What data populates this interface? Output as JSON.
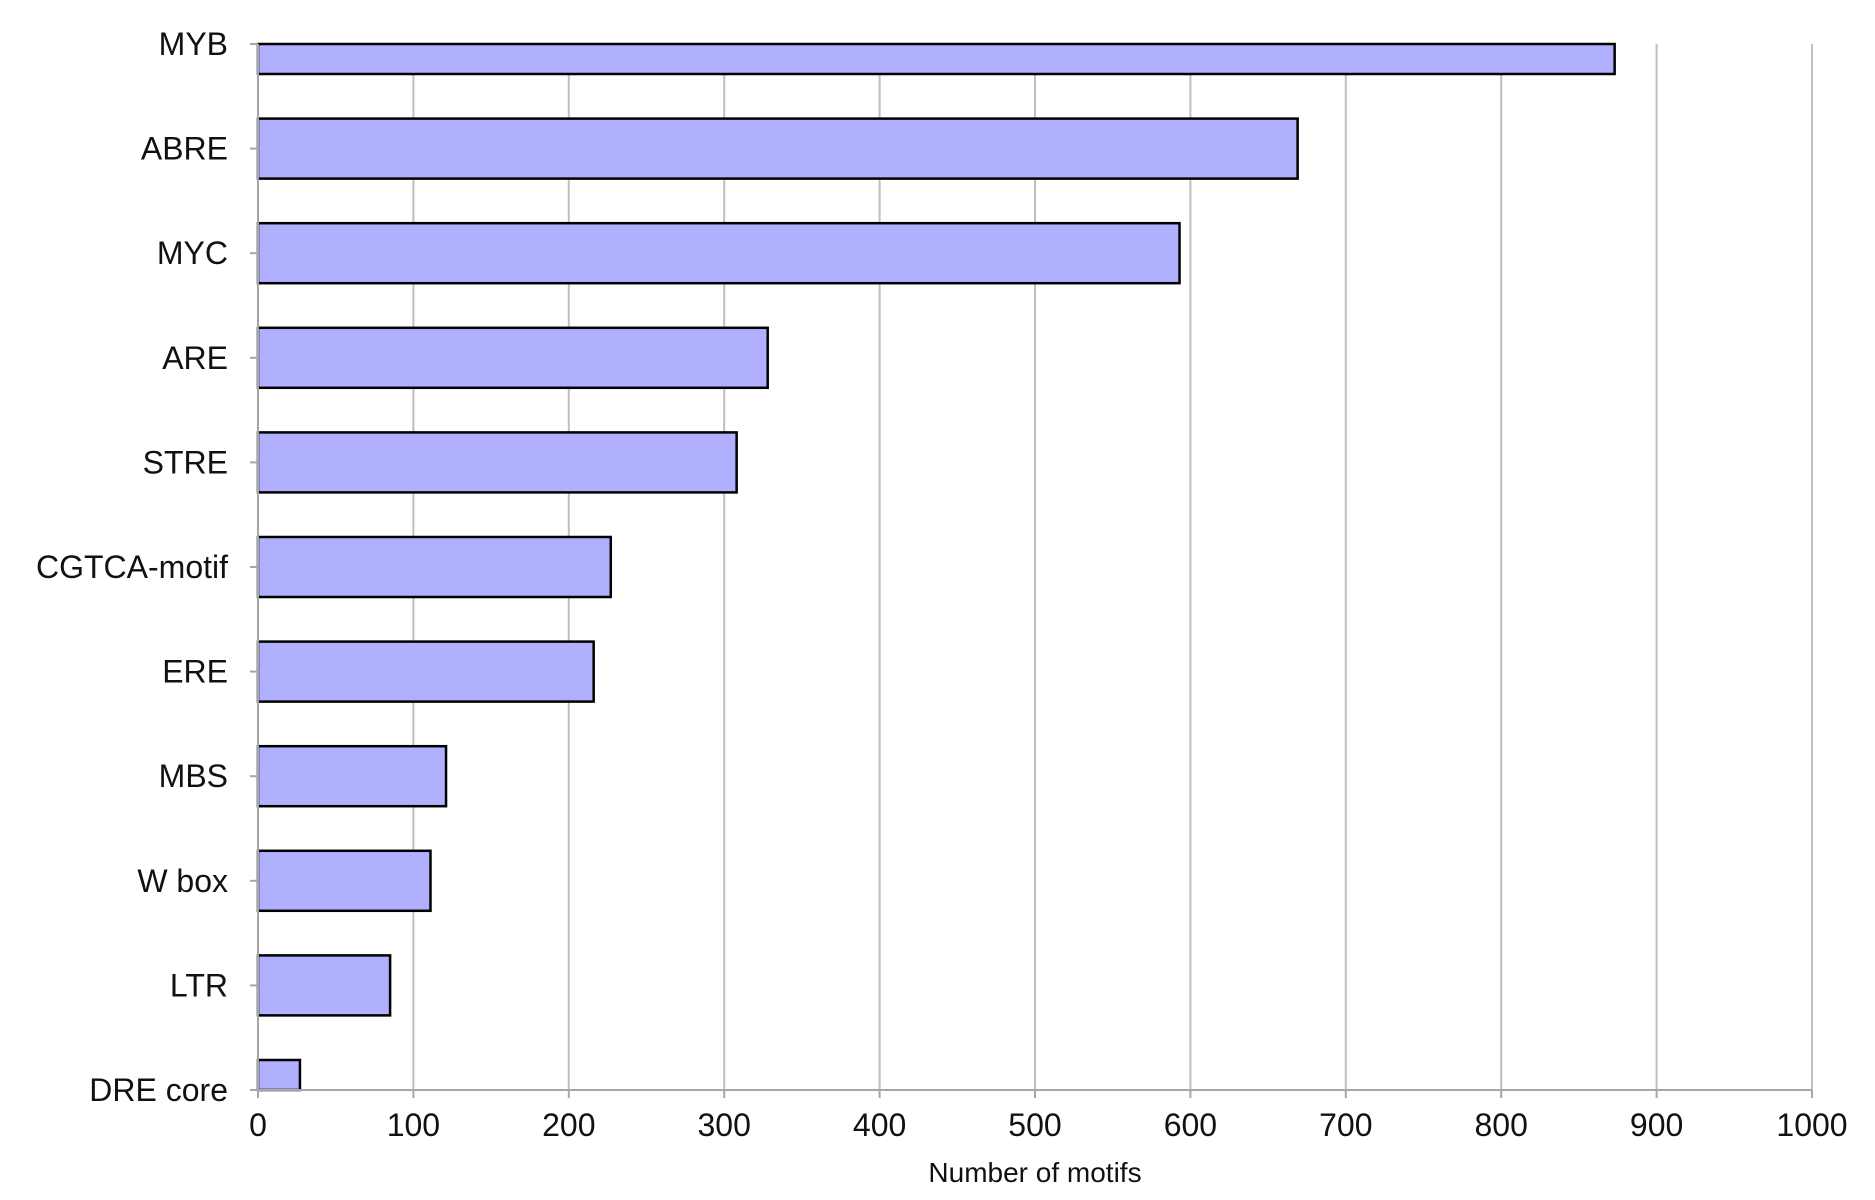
{
  "chart_data": {
    "type": "bar",
    "orientation": "horizontal",
    "categories": [
      "MYB",
      "ABRE",
      "MYC",
      "ARE",
      "STRE",
      "CGTCA-motif",
      "ERE",
      "MBS",
      "W box",
      "LTR",
      "DRE core"
    ],
    "values": [
      873,
      669,
      593,
      328,
      308,
      227,
      216,
      121,
      111,
      85,
      27
    ],
    "xlabel": "Number of motifs",
    "ylabel": "",
    "xlim": [
      0,
      1000
    ],
    "xticks": [
      "0",
      "100",
      "200",
      "300",
      "400",
      "500",
      "600",
      "700",
      "800",
      "900",
      "1000"
    ],
    "grid": "vertical",
    "legend": "none",
    "colors": {
      "bar_fill": "#b0b0ff",
      "bar_stroke": "#000000",
      "grid": "#bfbfbf",
      "axis": "#a6a6a6"
    }
  }
}
